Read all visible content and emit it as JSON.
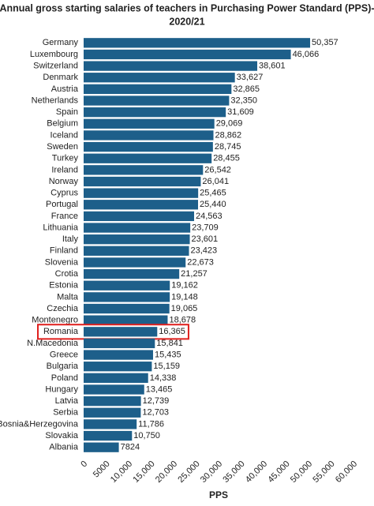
{
  "chart_data": {
    "type": "hbar",
    "title": "Annual gross starting salaries of teachers in Purchasing Power Standard (PPS)-",
    "subtitle": "2020/21",
    "x_label": "PPS",
    "categories": [
      "Germany",
      "Luxembourg",
      "Switzerland",
      "Denmark",
      "Austria",
      "Netherlands",
      "Spain",
      "Belgium",
      "Iceland",
      "Sweden",
      "Turkey",
      "Ireland",
      "Norway",
      "Cyprus",
      "Portugal",
      "France",
      "Lithuania",
      "Italy",
      "Finland",
      "Slovenia",
      "Crotia",
      "Estonia",
      "Malta",
      "Czechia",
      "Montenegro",
      "Romania",
      "N.Macedonia",
      "Greece",
      "Bulgaria",
      "Poland",
      "Hungary",
      "Latvia",
      "Serbia",
      "Bosnia&Herzegovina",
      "Slovakia",
      "Albania"
    ],
    "values": [
      50357,
      46066,
      38601,
      33627,
      32865,
      32350,
      31609,
      29069,
      28862,
      28745,
      28455,
      26542,
      26041,
      25465,
      25440,
      24563,
      23709,
      23601,
      23423,
      22673,
      21257,
      19162,
      19148,
      19065,
      18678,
      16365,
      15841,
      15435,
      15159,
      14338,
      13465,
      12739,
      12703,
      11786,
      10750,
      7824
    ],
    "value_labels": [
      "50,357",
      "46,066",
      "38,601",
      "33,627",
      "32,865",
      "32,350",
      "31,609",
      "29,069",
      "28,862",
      "28,745",
      "28,455",
      "26,542",
      "26,041",
      "25,465",
      "25,440",
      "24,563",
      "23,709",
      "23,601",
      "23,423",
      "22,673",
      "21,257",
      "19,162",
      "19,148",
      "19,065",
      "18,678",
      "16,365",
      "15,841",
      "15,435",
      "15,159",
      "14,338",
      "13,465",
      "12,739",
      "12,703",
      "11,786",
      "10,750",
      "7824"
    ],
    "color": "#1d5f8a",
    "highlight": "Romania",
    "highlight_color": "#e0201e",
    "xlim": [
      0,
      60000
    ],
    "xticks": [
      0,
      5000,
      {
        "value": 10000,
        "label": "10,000"
      },
      {
        "value": 15000,
        "label": "15,000"
      },
      {
        "value": 20000,
        "label": "20,000"
      },
      {
        "value": 25000,
        "label": "25,000"
      },
      {
        "value": 30000,
        "label": "30,000"
      },
      {
        "value": 35000,
        "label": "35,000"
      },
      {
        "value": 40000,
        "label": "40,000"
      },
      {
        "value": 45000,
        "label": "45,000"
      },
      {
        "value": 50000,
        "label": "50,000"
      },
      {
        "value": 55000,
        "label": "55,000"
      },
      {
        "value": 60000,
        "label": "60,000"
      }
    ],
    "grid": false
  }
}
